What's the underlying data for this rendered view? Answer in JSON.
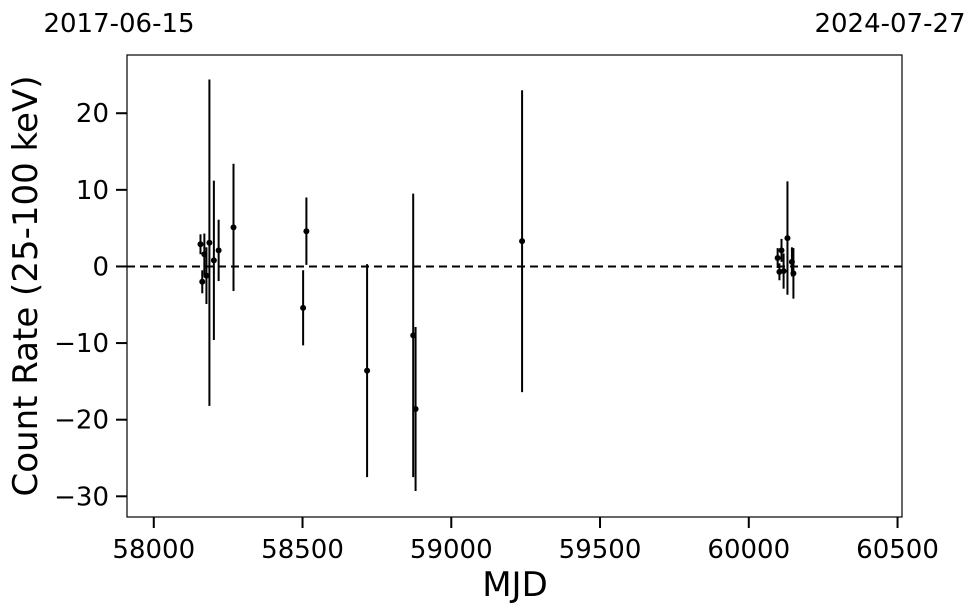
{
  "chart_data": {
    "type": "scatter",
    "xlabel": "MJD",
    "ylabel": "Count Rate (25-100 keV)",
    "xlim": [
      57910,
      60515
    ],
    "ylim": [
      -32.7,
      27.6
    ],
    "x_ticks": [
      58000,
      58500,
      59000,
      59500,
      60000,
      60500
    ],
    "x_tick_labels": [
      "58000",
      "58500",
      "59000",
      "59500",
      "60000",
      "60500"
    ],
    "y_ticks": [
      -30,
      -20,
      -10,
      0,
      10,
      20
    ],
    "y_tick_labels": [
      "−30",
      "−20",
      "−10",
      "0",
      "10",
      "20"
    ],
    "top_dates": {
      "left": "2017-06-15",
      "right": "2024-07-27"
    },
    "reference_line": {
      "y": 0,
      "style": "dashed",
      "color": "#000000"
    },
    "grid": false,
    "marker_color": "#000000",
    "points": [
      {
        "x": 58157,
        "y": 2.9,
        "err": 1.3
      },
      {
        "x": 58163,
        "y": -2.0,
        "err": 1.5
      },
      {
        "x": 58170,
        "y": 1.6,
        "err": 2.7
      },
      {
        "x": 58177,
        "y": -1.2,
        "err": 3.7
      },
      {
        "x": 58187,
        "y": 3.1,
        "err": 21.3
      },
      {
        "x": 58202,
        "y": 0.8,
        "err": 10.4
      },
      {
        "x": 58218,
        "y": 2.1,
        "err": 4.0
      },
      {
        "x": 58268,
        "y": 5.1,
        "err": 8.3
      },
      {
        "x": 58502,
        "y": -5.4,
        "err": 4.9
      },
      {
        "x": 58513,
        "y": 4.6,
        "err": 4.4
      },
      {
        "x": 58717,
        "y": -13.6,
        "err": 13.9
      },
      {
        "x": 58872,
        "y": -9.0,
        "err": 18.5
      },
      {
        "x": 58880,
        "y": -18.6,
        "err": 10.7
      },
      {
        "x": 59238,
        "y": 3.3,
        "err": 19.7
      },
      {
        "x": 60097,
        "y": 1.1,
        "err": 1.3
      },
      {
        "x": 60103,
        "y": -0.7,
        "err": 1.1
      },
      {
        "x": 60110,
        "y": 2.1,
        "err": 1.5
      },
      {
        "x": 60117,
        "y": -0.6,
        "err": 2.3
      },
      {
        "x": 60130,
        "y": 3.7,
        "err": 7.4
      },
      {
        "x": 60145,
        "y": 0.6,
        "err": 1.9
      },
      {
        "x": 60150,
        "y": -0.9,
        "err": 3.3
      }
    ]
  }
}
